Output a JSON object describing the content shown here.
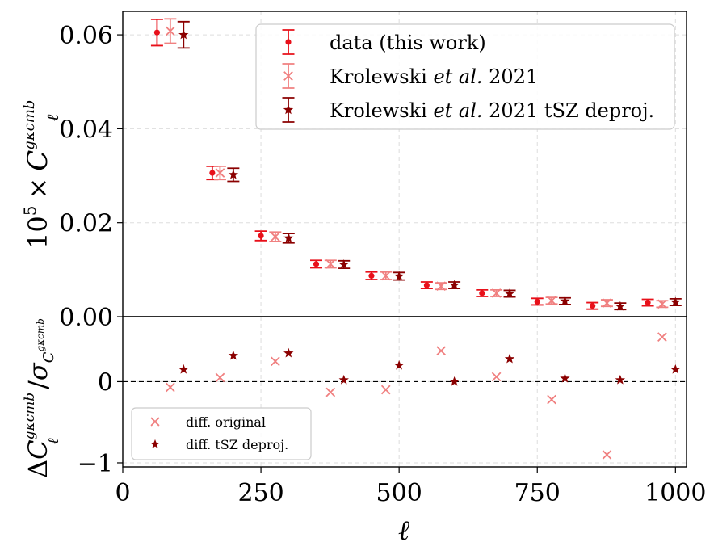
{
  "chart_data": [
    {
      "type": "scatter",
      "panel": "top",
      "ylabel_prefix": "10",
      "ylabel_exp": "5",
      "ylabel_times": "×",
      "ylabel_main": "C",
      "ylabel_sub": "ℓ",
      "ylabel_sup": "gκcmb",
      "ylim": [
        0.0,
        0.065
      ],
      "yticks": [
        0.0,
        0.02,
        0.04,
        0.06
      ],
      "ytick_labels": [
        "0.00",
        "0.02",
        "0.04",
        "0.06"
      ],
      "grid": true,
      "legend": "top-right",
      "series": [
        {
          "name_main": "data (this work)",
          "name_italic": "",
          "name_tail": "",
          "marker": "dot",
          "color": "#e8101a",
          "x": [
            62,
            162,
            250,
            350,
            450,
            550,
            650,
            750,
            850,
            950
          ],
          "y": [
            0.0605,
            0.0306,
            0.0172,
            0.0112,
            0.0087,
            0.0067,
            0.005,
            0.0032,
            0.0023,
            0.003
          ],
          "err": [
            0.0028,
            0.0014,
            0.001,
            0.0008,
            0.0008,
            0.0007,
            0.0007,
            0.0007,
            0.0007,
            0.0007
          ]
        },
        {
          "name_main": "Krolewski ",
          "name_italic": "et al.",
          "name_tail": " 2021",
          "marker": "x",
          "color": "#f08080",
          "x": [
            86,
            176,
            276,
            376,
            476,
            576,
            676,
            776,
            876,
            976
          ],
          "y": [
            0.0608,
            0.0306,
            0.017,
            0.0112,
            0.0087,
            0.0065,
            0.005,
            0.0034,
            0.0029,
            0.0027
          ],
          "err": [
            0.0026,
            0.0014,
            0.001,
            0.0008,
            0.0008,
            0.0007,
            0.0007,
            0.0007,
            0.0007,
            0.0007
          ]
        },
        {
          "name_main": "Krolewski ",
          "name_italic": "et al.",
          "name_tail": " 2021 tSZ deproj.",
          "marker": "star",
          "color": "#8b0000",
          "x": [
            110,
            200,
            300,
            400,
            500,
            600,
            700,
            800,
            900,
            1000
          ],
          "y": [
            0.06,
            0.0302,
            0.0167,
            0.0111,
            0.0086,
            0.0067,
            0.0049,
            0.0033,
            0.0022,
            0.0031
          ],
          "err": [
            0.0028,
            0.0014,
            0.001,
            0.0008,
            0.0008,
            0.0007,
            0.0007,
            0.0007,
            0.0007,
            0.0007
          ]
        }
      ]
    },
    {
      "type": "scatter",
      "panel": "bottom",
      "xlabel": "ℓ",
      "ylabel_delta": "Δ",
      "ylabel_main": "C",
      "ylabel_sub": "ℓ",
      "ylabel_sup": "gκcmb",
      "ylabel_slash": "/",
      "ylabel_sigma": "σ",
      "ylabel_sigma_sub": "C",
      "ylim": [
        -1.05,
        0.8
      ],
      "yticks": [
        -1,
        0
      ],
      "ytick_labels": [
        "−1",
        "0"
      ],
      "xlim": [
        0,
        1020
      ],
      "xticks": [
        0,
        250,
        500,
        750,
        1000
      ],
      "xtick_labels": [
        "0",
        "250",
        "500",
        "750",
        "1000"
      ],
      "zero_line": true,
      "legend": "bottom-left",
      "series": [
        {
          "name": "diff. original",
          "marker": "x",
          "color": "#f08080",
          "x": [
            86,
            176,
            276,
            376,
            476,
            576,
            676,
            776,
            876,
            976
          ],
          "y": [
            -0.07,
            0.05,
            0.25,
            -0.13,
            -0.1,
            0.38,
            0.06,
            -0.22,
            -0.9,
            0.55
          ]
        },
        {
          "name": "diff. tSZ deproj.",
          "marker": "star",
          "color": "#8b0000",
          "x": [
            110,
            200,
            300,
            400,
            500,
            600,
            700,
            800,
            900,
            1000
          ],
          "y": [
            0.15,
            0.32,
            0.35,
            0.02,
            0.2,
            0.0,
            0.28,
            0.04,
            0.02,
            0.15
          ]
        }
      ]
    }
  ]
}
